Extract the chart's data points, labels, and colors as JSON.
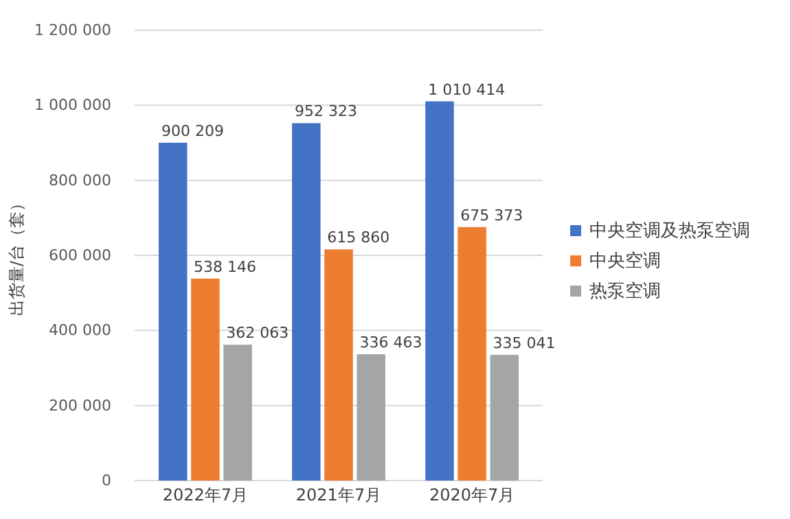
{
  "chart_data": {
    "type": "bar",
    "ylabel": "出货量/台（套）",
    "categories": [
      "2022年7月",
      "2021年7月",
      "2020年7月"
    ],
    "series": [
      {
        "name": "中央空调及热泵空调",
        "color": "#4472c4",
        "values": [
          900209,
          952323,
          1010414
        ]
      },
      {
        "name": "中央空调",
        "color": "#ed7d31",
        "values": [
          538146,
          615860,
          675373
        ]
      },
      {
        "name": "热泵空调",
        "color": "#a5a5a5",
        "values": [
          362063,
          336463,
          335041
        ]
      }
    ],
    "ylim": [
      0,
      1200000
    ],
    "yticks": [
      {
        "value": 0,
        "label": "0"
      },
      {
        "value": 200000,
        "label": "200 000"
      },
      {
        "value": 400000,
        "label": "400 000"
      },
      {
        "value": 600000,
        "label": "600 000"
      },
      {
        "value": 800000,
        "label": "800 000"
      },
      {
        "value": 1000000,
        "label": "1 000 000"
      },
      {
        "value": 1200000,
        "label": "1 200 000"
      }
    ],
    "grid": "y",
    "legend": "right",
    "data_labels": true
  }
}
